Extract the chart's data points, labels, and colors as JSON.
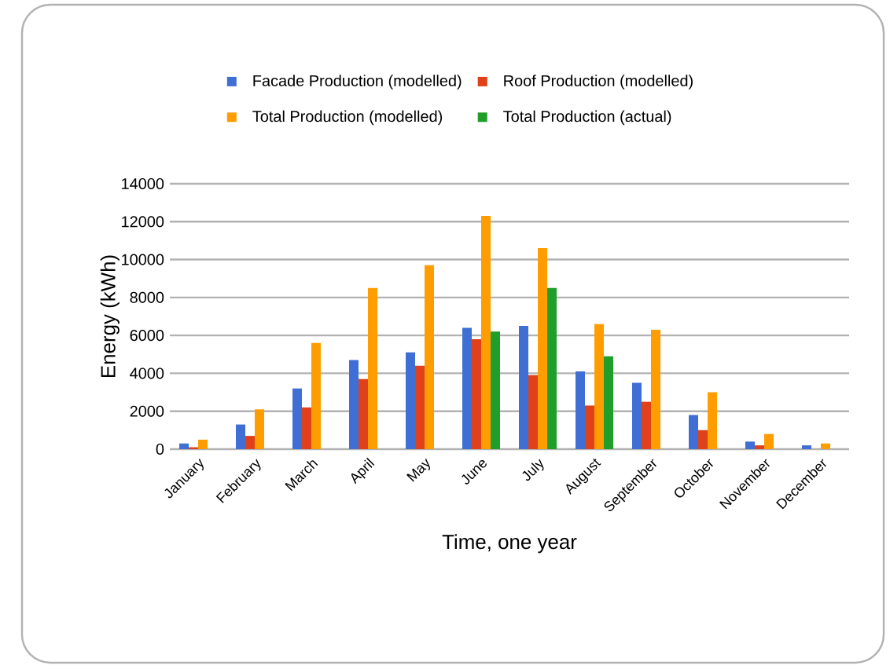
{
  "chart_data": {
    "type": "bar",
    "xlabel": "Time, one year",
    "ylabel": "Energy (kWh)",
    "categories": [
      "January",
      "February",
      "March",
      "April",
      "May",
      "June",
      "July",
      "August",
      "September",
      "October",
      "November",
      "December"
    ],
    "series": [
      {
        "name": "Facade Production (modelled)",
        "color": "#3f6fd4",
        "values": [
          300,
          1300,
          3200,
          4700,
          5100,
          6400,
          6500,
          4100,
          3500,
          1800,
          400,
          200
        ]
      },
      {
        "name": "Roof Production (modelled)",
        "color": "#e0401a",
        "values": [
          100,
          700,
          2200,
          3700,
          4400,
          5800,
          3900,
          2300,
          2500,
          1000,
          200,
          0
        ]
      },
      {
        "name": "Total Production (modelled)",
        "color": "#ff9d00",
        "values": [
          500,
          2100,
          5600,
          8500,
          9700,
          12300,
          10600,
          6600,
          6300,
          3000,
          800,
          300
        ]
      },
      {
        "name": "Total Production (actual)",
        "color": "#1f9e2a",
        "values": [
          null,
          null,
          null,
          null,
          null,
          6200,
          8500,
          4900,
          null,
          null,
          null,
          null
        ]
      }
    ],
    "ylim": [
      0,
      14000
    ],
    "yticks": [
      0,
      2000,
      4000,
      6000,
      8000,
      10000,
      12000,
      14000
    ],
    "grid": "y",
    "legend": "top"
  }
}
